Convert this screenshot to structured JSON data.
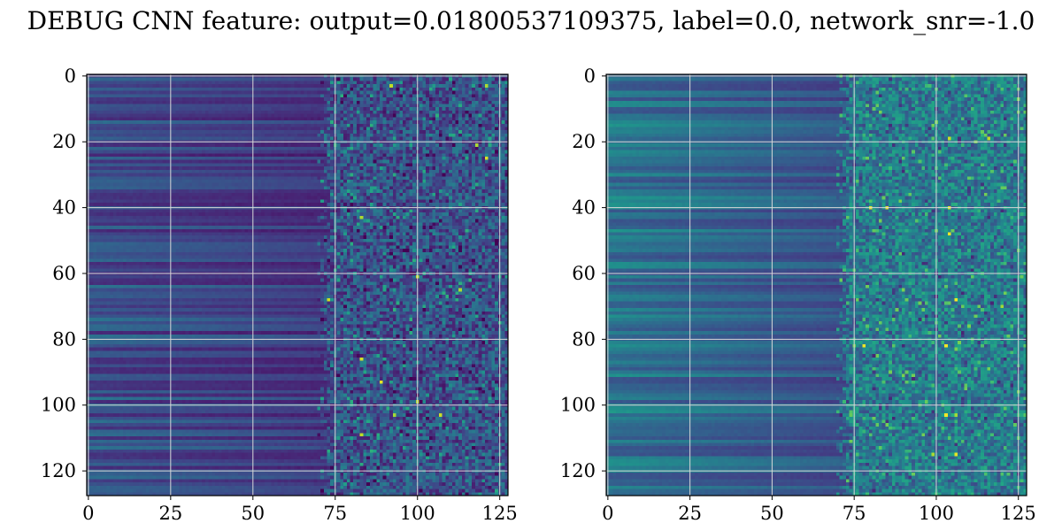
{
  "chart_data": [
    {
      "type": "heatmap",
      "title": "DEBUG CNN feature: output=0.01800537109375, label=0.0, network_snr=-1.0",
      "panel": "left",
      "rows": 128,
      "cols": 128,
      "colormap": "viridis",
      "grid": true,
      "x_ticks": [
        0,
        25,
        50,
        75,
        100,
        125
      ],
      "y_ticks": [
        0,
        20,
        40,
        60,
        80,
        100,
        120
      ],
      "xlim": [
        -0.5,
        127.5
      ],
      "ylim": [
        127.5,
        -0.5
      ],
      "description_values": {
        "smooth_region_cols": [
          0,
          72
        ],
        "noisy_region_cols": [
          72,
          127
        ],
        "smooth_level": 0.25,
        "noisy_level": 0.22,
        "noisy_contrast": 0.35,
        "bright_points": [
          [
            3,
            92
          ],
          [
            3,
            121
          ],
          [
            25,
            121
          ],
          [
            43,
            83
          ],
          [
            61,
            100
          ],
          [
            68,
            73
          ],
          [
            86,
            83
          ],
          [
            93,
            89
          ],
          [
            99,
            100
          ],
          [
            103,
            93
          ],
          [
            109,
            83
          ],
          [
            103,
            107
          ],
          [
            21,
            118
          ],
          [
            65,
            113
          ]
        ]
      }
    },
    {
      "type": "heatmap",
      "panel": "right",
      "rows": 128,
      "cols": 128,
      "colormap": "viridis",
      "grid": true,
      "x_ticks": [
        0,
        25,
        50,
        75,
        100,
        125
      ],
      "y_ticks": [
        0,
        20,
        40,
        60,
        80,
        100,
        120
      ],
      "xlim": [
        -0.5,
        127.5
      ],
      "ylim": [
        127.5,
        -0.5
      ],
      "description_values": {
        "smooth_region_cols": [
          0,
          72
        ],
        "noisy_region_cols": [
          72,
          127
        ],
        "smooth_level": 0.4,
        "noisy_level": 0.38,
        "noisy_contrast": 0.35,
        "bright_points": [
          [
            19,
            104
          ],
          [
            19,
            116
          ],
          [
            40,
            80
          ],
          [
            40,
            85
          ],
          [
            40,
            104
          ],
          [
            68,
            106
          ],
          [
            70,
            120
          ],
          [
            82,
            78
          ],
          [
            82,
            103
          ],
          [
            103,
            103
          ],
          [
            103,
            106
          ],
          [
            115,
            99
          ],
          [
            115,
            106
          ],
          [
            48,
            104
          ]
        ]
      }
    }
  ]
}
